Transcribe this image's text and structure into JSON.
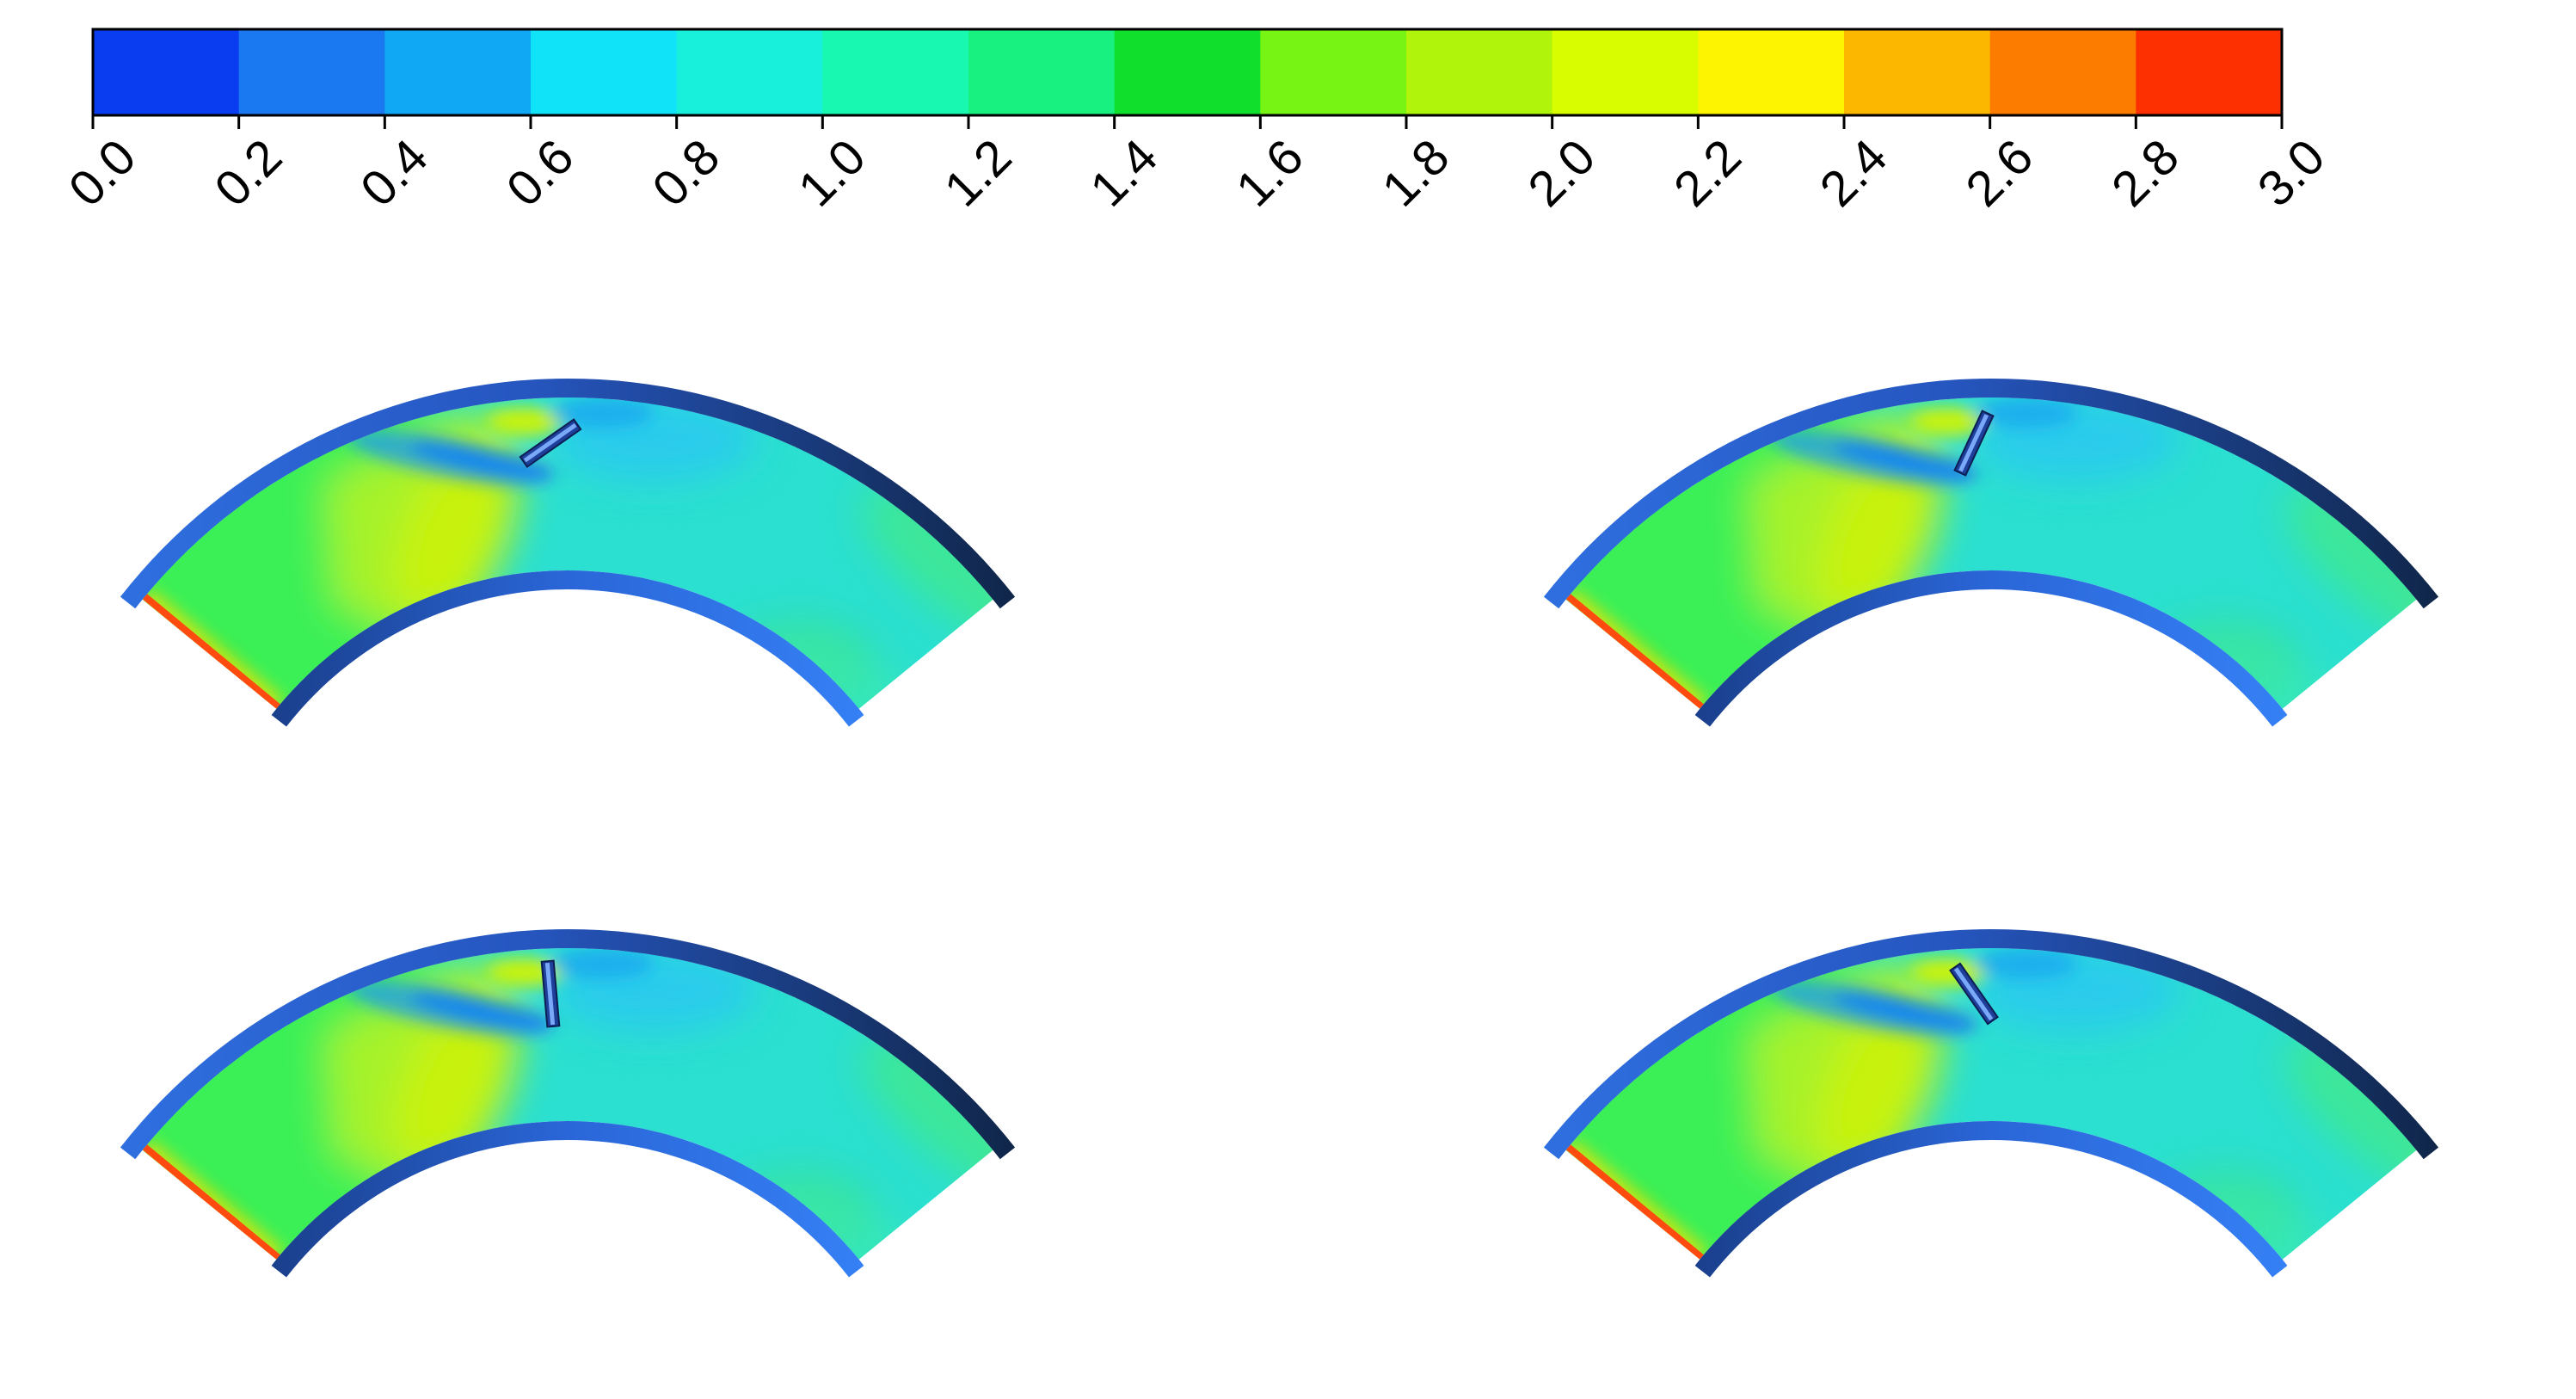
{
  "colorbar": {
    "ticks": [
      "0.0",
      "0.2",
      "0.4",
      "0.6",
      "0.8",
      "1.0",
      "1.2",
      "1.4",
      "1.6",
      "1.8",
      "2.0",
      "2.2",
      "2.4",
      "2.6",
      "2.8",
      "3.0"
    ],
    "colors": [
      "#0a3cf0",
      "#1a78f0",
      "#10a8f4",
      "#10e2f8",
      "#18f0dc",
      "#18f8b0",
      "#18f080",
      "#10e02c",
      "#78f414",
      "#b0f40c",
      "#d8fc00",
      "#fcf400",
      "#fcb800",
      "#fc7c00",
      "#fc3000"
    ],
    "range": [
      0,
      3
    ],
    "orientation": "horizontal"
  },
  "colors": {
    "inner_wall": "#2f7cf0",
    "outer_wall_dark": "#10264a",
    "outer_wall_light": "#2f6fe0",
    "base_flow": "#2be0d0",
    "high_flow": "#3cf050",
    "peak_flow": "#c8f20a",
    "low_flow": "#1a4fe8",
    "inlet_edge": "#ff4a10"
  },
  "panels": [
    {
      "id": "panel-1",
      "blade_tilt_deg": 55
    },
    {
      "id": "panel-2",
      "blade_tilt_deg": 25
    },
    {
      "id": "panel-3",
      "blade_tilt_deg": -5
    },
    {
      "id": "panel-4",
      "blade_tilt_deg": -35
    }
  ]
}
